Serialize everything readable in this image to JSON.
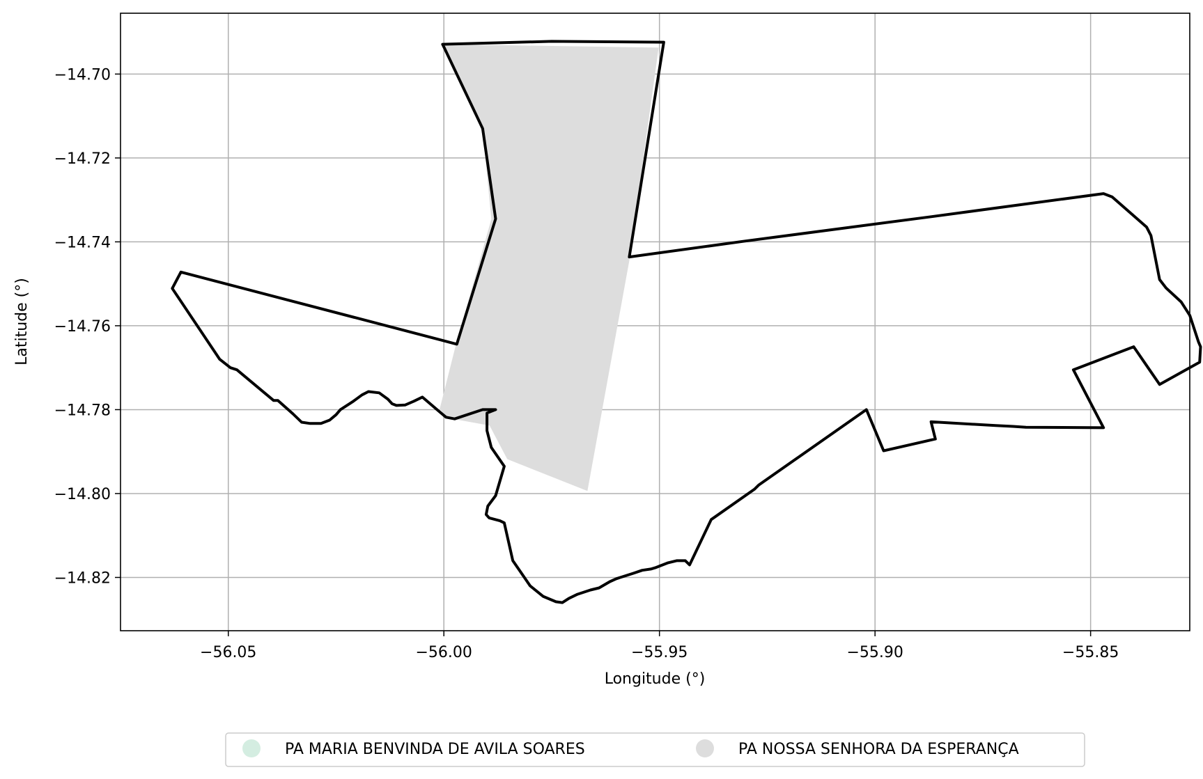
{
  "map": {
    "xlabel": "Longitude (°)",
    "ylabel": "Latitude (°)",
    "xlim": [
      -56.075,
      -55.827
    ],
    "ylim": [
      -14.8327,
      -14.6855
    ],
    "x_ticks": [
      -56.05,
      -56.0,
      -55.95,
      -55.9,
      -55.85
    ],
    "x_tick_labels": [
      "−56.05",
      "−56.00",
      "−55.95",
      "−55.90",
      "−55.85"
    ],
    "y_ticks": [
      -14.7,
      -14.72,
      -14.74,
      -14.76,
      -14.78,
      -14.8,
      -14.82
    ],
    "y_tick_labels": [
      "−14.70",
      "−14.72",
      "−14.74",
      "−14.76",
      "−14.78",
      "−14.80",
      "−14.82"
    ],
    "grid": true,
    "legend": {
      "placement": "bottom-center",
      "items": [
        {
          "label": "PA MARIA BENVINDA DE AVILA SOARES",
          "color": "#d4ede1"
        },
        {
          "label": "PA NOSSA SENHORA DA ESPERANÇA",
          "color": "#dddddd"
        }
      ]
    },
    "features": [
      {
        "name": "PA NOSSA SENHORA DA ESPERANÇA",
        "fill": "#dddddd",
        "coordinates": [
          [
            -56.0003,
            -14.6929
          ],
          [
            -55.9502,
            -14.6937
          ],
          [
            -55.957,
            -14.7445
          ],
          [
            -55.9667,
            -14.7994
          ],
          [
            -55.9853,
            -14.7918
          ],
          [
            -55.9894,
            -14.7838
          ],
          [
            -55.999,
            -14.782
          ],
          [
            -56.001,
            -14.78
          ],
          [
            -55.9974,
            -14.7653
          ],
          [
            -55.989,
            -14.7346
          ],
          [
            -55.991,
            -14.713
          ]
        ]
      },
      {
        "name": "outline",
        "stroke": "#000000",
        "coordinates": [
          [
            -56.0003,
            -14.6929
          ],
          [
            -55.975,
            -14.6922
          ],
          [
            -55.949,
            -14.6924
          ],
          [
            -55.957,
            -14.7436
          ],
          [
            -55.93,
            -14.7398
          ],
          [
            -55.887,
            -14.734
          ],
          [
            -55.847,
            -14.7285
          ],
          [
            -55.845,
            -14.7293
          ],
          [
            -55.837,
            -14.7365
          ],
          [
            -55.836,
            -14.7385
          ],
          [
            -55.834,
            -14.749
          ],
          [
            -55.8325,
            -14.751
          ],
          [
            -55.829,
            -14.7543
          ],
          [
            -55.827,
            -14.7575
          ],
          [
            -55.825,
            -14.7638
          ],
          [
            -55.8245,
            -14.765
          ],
          [
            -55.8247,
            -14.7687
          ],
          [
            -55.834,
            -14.774
          ],
          [
            -55.84,
            -14.765
          ],
          [
            -55.854,
            -14.7705
          ],
          [
            -55.847,
            -14.7843
          ],
          [
            -55.865,
            -14.7842
          ],
          [
            -55.868,
            -14.784
          ],
          [
            -55.872,
            -14.7838
          ],
          [
            -55.887,
            -14.7829
          ],
          [
            -55.886,
            -14.787
          ],
          [
            -55.898,
            -14.7898
          ],
          [
            -55.902,
            -14.78
          ],
          [
            -55.927,
            -14.798
          ],
          [
            -55.928,
            -14.799
          ],
          [
            -55.938,
            -14.8062
          ],
          [
            -55.943,
            -14.817
          ],
          [
            -55.944,
            -14.816
          ],
          [
            -55.946,
            -14.816
          ],
          [
            -55.948,
            -14.8165
          ],
          [
            -55.951,
            -14.8177
          ],
          [
            -55.952,
            -14.818
          ],
          [
            -55.954,
            -14.8183
          ],
          [
            -55.956,
            -14.819
          ],
          [
            -55.96,
            -14.8203
          ],
          [
            -55.9615,
            -14.821
          ],
          [
            -55.964,
            -14.8225
          ],
          [
            -55.966,
            -14.823
          ],
          [
            -55.969,
            -14.824
          ],
          [
            -55.971,
            -14.825
          ],
          [
            -55.9725,
            -14.826
          ],
          [
            -55.974,
            -14.8258
          ],
          [
            -55.977,
            -14.8245
          ],
          [
            -55.98,
            -14.822
          ],
          [
            -55.982,
            -14.819
          ],
          [
            -55.984,
            -14.816
          ],
          [
            -55.986,
            -14.807
          ],
          [
            -55.987,
            -14.8065
          ],
          [
            -55.9895,
            -14.8058
          ],
          [
            -55.9902,
            -14.805
          ],
          [
            -55.9898,
            -14.803
          ],
          [
            -55.988,
            -14.8005
          ],
          [
            -55.986,
            -14.7935
          ],
          [
            -55.989,
            -14.789
          ],
          [
            -55.99,
            -14.785
          ],
          [
            -55.99,
            -14.7808
          ],
          [
            -55.988,
            -14.78
          ],
          [
            -55.991,
            -14.78
          ],
          [
            -55.9975,
            -14.7822
          ],
          [
            -55.9995,
            -14.7818
          ],
          [
            -56.001,
            -14.7805
          ],
          [
            -56.005,
            -14.777
          ],
          [
            -56.007,
            -14.778
          ],
          [
            -56.009,
            -14.7789
          ],
          [
            -56.011,
            -14.779
          ],
          [
            -56.012,
            -14.7786
          ],
          [
            -56.013,
            -14.7775
          ],
          [
            -56.015,
            -14.776
          ],
          [
            -56.0175,
            -14.7757
          ],
          [
            -56.019,
            -14.7765
          ],
          [
            -56.021,
            -14.778
          ],
          [
            -56.024,
            -14.78
          ],
          [
            -56.025,
            -14.7812
          ],
          [
            -56.0265,
            -14.7825
          ],
          [
            -56.0285,
            -14.7833
          ],
          [
            -56.031,
            -14.7833
          ],
          [
            -56.033,
            -14.783
          ],
          [
            -56.035,
            -14.781
          ],
          [
            -56.0385,
            -14.7778
          ],
          [
            -56.0395,
            -14.7778
          ],
          [
            -56.048,
            -14.7705
          ],
          [
            -56.0495,
            -14.77
          ],
          [
            -56.052,
            -14.768
          ],
          [
            -56.063,
            -14.7511
          ],
          [
            -56.061,
            -14.7472
          ],
          [
            -55.997,
            -14.7644
          ],
          [
            -55.988,
            -14.7345
          ],
          [
            -55.991,
            -14.713
          ],
          [
            -56.0003,
            -14.6929
          ]
        ]
      }
    ]
  }
}
